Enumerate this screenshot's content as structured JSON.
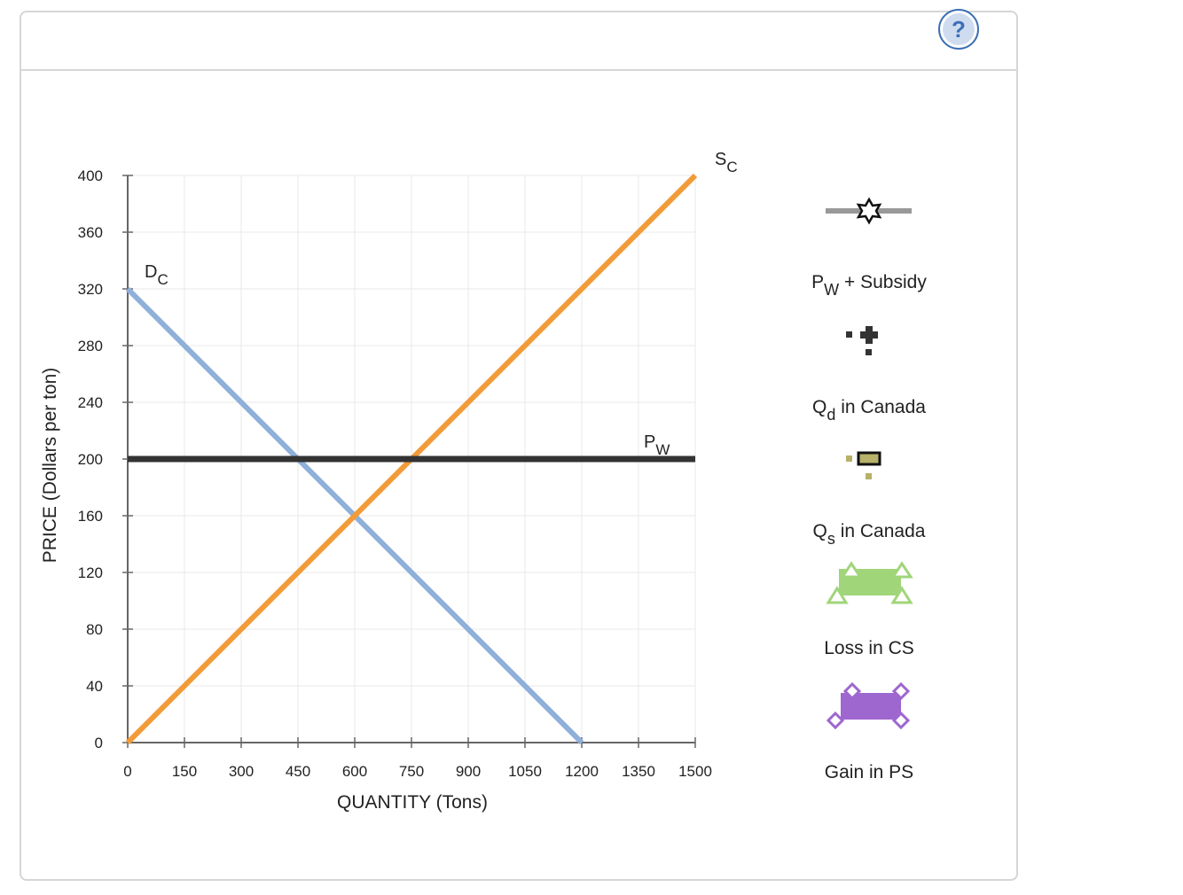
{
  "help": {
    "label": "?"
  },
  "chart_data": {
    "type": "line",
    "xlabel": "QUANTITY (Tons)",
    "ylabel": "PRICE (Dollars per ton)",
    "xlim": [
      0,
      1500
    ],
    "ylim": [
      0,
      400
    ],
    "x_ticks": [
      0,
      150,
      300,
      450,
      600,
      750,
      900,
      1050,
      1200,
      1350,
      1500
    ],
    "y_ticks": [
      0,
      40,
      80,
      120,
      160,
      200,
      240,
      280,
      320,
      360,
      400
    ],
    "grid": true,
    "series": [
      {
        "name": "D",
        "subscript": "C",
        "color": "#8fb0d8",
        "x": [
          0,
          1200
        ],
        "y": [
          320,
          0
        ]
      },
      {
        "name": "S",
        "subscript": "C",
        "color": "#f29b38",
        "x": [
          0,
          1500
        ],
        "y": [
          0,
          400
        ]
      },
      {
        "name": "P",
        "subscript": "W",
        "color": "#333333",
        "x": [
          0,
          1500
        ],
        "y": [
          200,
          200
        ]
      }
    ]
  },
  "legend": {
    "items": [
      {
        "label_main": "P",
        "label_sub": "W",
        "label_rest": " + Subsidy",
        "icon": "star-line-tool-icon",
        "color": "#999999"
      },
      {
        "label_main": "Q",
        "label_sub": "d",
        "label_rest": " in Canada",
        "icon": "cross-point-tool-icon",
        "color": "#333333"
      },
      {
        "label_main": "Q",
        "label_sub": "s",
        "label_rest": " in Canada",
        "icon": "square-point-tool-icon",
        "color": "#b7b16a"
      },
      {
        "label_main": "Loss in CS",
        "label_sub": "",
        "label_rest": "",
        "icon": "triangle-area-tool-icon",
        "color": "#a1d57a"
      },
      {
        "label_main": "Gain in PS",
        "label_sub": "",
        "label_rest": "",
        "icon": "diamond-area-tool-icon",
        "color": "#9e66cf"
      }
    ]
  }
}
